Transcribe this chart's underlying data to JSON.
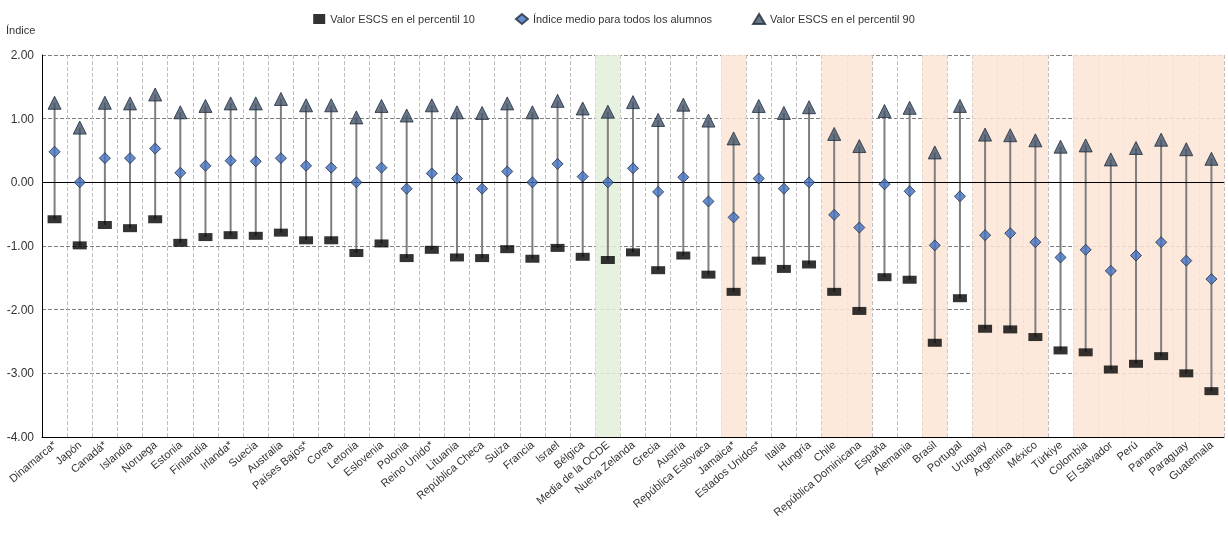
{
  "chart_data": {
    "type": "scatter",
    "ylabel": "Índice",
    "categories": [
      "Dinamarca*",
      "Japón",
      "Canadá*",
      "Islandia",
      "Noruega",
      "Estonia",
      "Finlandia",
      "Irlanda*",
      "Suecia",
      "Australia",
      "Países Bajos*",
      "Corea",
      "Letonia",
      "Eslovenia",
      "Polonia",
      "Reino Unido*",
      "Lituania",
      "República Checa",
      "Suiza",
      "Francia",
      "Israel",
      "Bélgica",
      "Media de la OCDE",
      "Nueva Zelanda",
      "Grecia",
      "Austria",
      "República Eslovaca",
      "Jamaica*",
      "Estados Unidos*",
      "Italia",
      "Hungría",
      "Chile",
      "República Dominicana",
      "España",
      "Alemania",
      "Brasil",
      "Portugal",
      "Uruguay",
      "Argentina",
      "México",
      "Türkiye",
      "Colombia",
      "El Salvador",
      "Perú",
      "Panamá",
      "Paraguay",
      "Guatemala"
    ],
    "series": [
      {
        "name": "Valor ESCS en el percentil 10",
        "color": "#000000",
        "marker": "square",
        "values": [
          -0.58,
          -0.99,
          -0.67,
          -0.72,
          -0.58,
          -0.95,
          -0.86,
          -0.83,
          -0.84,
          -0.79,
          -0.91,
          -0.91,
          -1.11,
          -0.96,
          -1.19,
          -1.06,
          -1.18,
          -1.19,
          -1.05,
          -1.2,
          -1.03,
          -1.17,
          -1.22,
          -1.1,
          -1.38,
          -1.15,
          -1.45,
          -1.72,
          -1.23,
          -1.36,
          -1.29,
          -1.72,
          -2.02,
          -1.49,
          -1.53,
          -2.52,
          -1.82,
          -2.3,
          -2.31,
          -2.43,
          -2.64,
          -2.67,
          -2.94,
          -2.85,
          -2.73,
          -3.0,
          -3.28
        ]
      },
      {
        "name": "Índice medio para todos los alumnos",
        "color": "#4472c4",
        "marker": "diamond",
        "values": [
          0.48,
          0.0,
          0.38,
          0.38,
          0.53,
          0.15,
          0.26,
          0.34,
          0.33,
          0.38,
          0.26,
          0.23,
          0.0,
          0.23,
          -0.1,
          0.14,
          0.06,
          -0.1,
          0.17,
          0.0,
          0.29,
          0.09,
          0.0,
          0.22,
          -0.15,
          0.08,
          -0.3,
          -0.55,
          0.06,
          -0.1,
          0.0,
          -0.51,
          -0.71,
          -0.03,
          -0.14,
          -0.99,
          -0.22,
          -0.83,
          -0.8,
          -0.94,
          -1.18,
          -1.06,
          -1.39,
          -1.15,
          -0.94,
          -1.23,
          -1.52
        ]
      },
      {
        "name": "Valor ESCS en el percentil 90",
        "color": "#44546a",
        "marker": "triangle",
        "values": [
          1.25,
          0.86,
          1.25,
          1.24,
          1.38,
          1.1,
          1.2,
          1.24,
          1.24,
          1.31,
          1.21,
          1.21,
          1.02,
          1.2,
          1.05,
          1.21,
          1.1,
          1.09,
          1.24,
          1.1,
          1.28,
          1.16,
          1.11,
          1.26,
          0.98,
          1.22,
          0.97,
          0.69,
          1.2,
          1.09,
          1.18,
          0.76,
          0.57,
          1.12,
          1.17,
          0.47,
          1.2,
          0.75,
          0.74,
          0.66,
          0.56,
          0.58,
          0.36,
          0.54,
          0.67,
          0.52,
          0.37
        ]
      }
    ],
    "ylim": [
      -4,
      2
    ],
    "yticks": [
      {
        "value": -4,
        "label": "-4.00"
      },
      {
        "value": -3,
        "label": "-3.00"
      },
      {
        "value": -2,
        "label": "-2.00"
      },
      {
        "value": -1,
        "label": "-1.00"
      },
      {
        "value": 0,
        "label": "0.00"
      },
      {
        "value": 1,
        "label": "1.00"
      },
      {
        "value": 2,
        "label": "2.00"
      }
    ],
    "ref_lines": [
      {
        "axis": "y",
        "value": 0,
        "color": "#000000",
        "line_style": "solid"
      }
    ],
    "bands": [
      {
        "axis": "x",
        "from": "Media de la OCDE",
        "to": "Media de la OCDE",
        "color": "#e2efda"
      },
      {
        "axis": "x",
        "from": "Jamaica*",
        "to": "Jamaica*",
        "color": "#fbe5d6"
      },
      {
        "axis": "x",
        "from": "Chile",
        "to": "República Dominicana",
        "color": "#fbe5d6"
      },
      {
        "axis": "x",
        "from": "Brasil",
        "to": "Brasil",
        "color": "#fbe5d6"
      },
      {
        "axis": "x",
        "from": "Uruguay",
        "to": "México",
        "color": "#fbe5d6"
      },
      {
        "axis": "x",
        "from": "Colombia",
        "to": "Guatemala",
        "color": "#fbe5d6"
      }
    ],
    "grid": true,
    "legend": "top"
  }
}
